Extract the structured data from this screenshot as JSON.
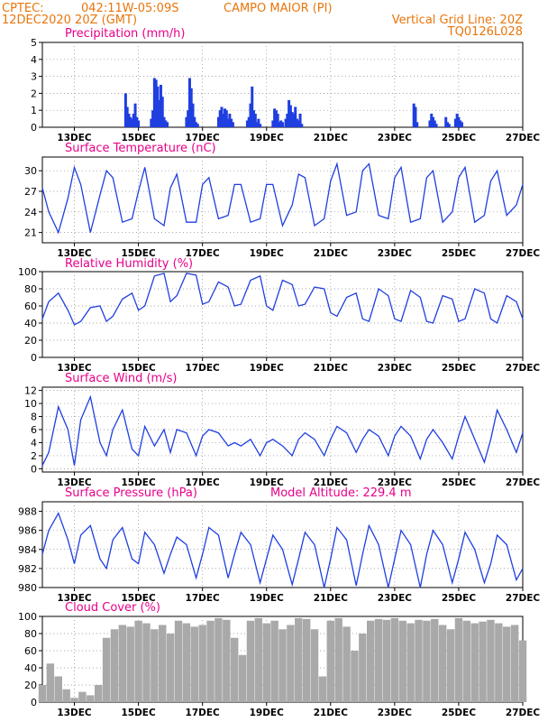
{
  "header": {
    "org": "CPTEC:",
    "coords": "042:11W-05:09S",
    "location": "CAMPO MAIOR (PI)",
    "run": "12DEC2020 20Z (GMT)",
    "grid_note": "Vertical Grid Line: 20Z",
    "model": "TQ0126L028"
  },
  "colors": {
    "header": "#e8760c",
    "title": "#e8008a",
    "line": "#1f3fe0",
    "bar": "#1f3fe0",
    "cloud": "#a9a9a9"
  },
  "x_ticks": [
    "13DEC",
    "15DEC",
    "17DEC",
    "19DEC",
    "21DEC",
    "23DEC",
    "25DEC",
    "27DEC"
  ],
  "chart_data": [
    {
      "type": "bar",
      "title": "Precipitation (mm/h)",
      "ylim": [
        0,
        5
      ],
      "yticks": [
        0,
        1,
        2,
        3,
        4,
        5
      ],
      "x_range_days": [
        12.0,
        27.0
      ],
      "x": [
        14.6,
        14.65,
        14.7,
        14.75,
        14.8,
        14.85,
        14.9,
        14.95,
        15.0,
        15.4,
        15.45,
        15.5,
        15.55,
        15.6,
        15.65,
        15.7,
        15.75,
        15.8,
        15.85,
        15.9,
        16.5,
        16.55,
        16.6,
        16.65,
        16.7,
        16.75,
        16.8,
        16.85,
        17.5,
        17.55,
        17.6,
        17.65,
        17.7,
        17.75,
        17.8,
        17.85,
        17.9,
        17.95,
        18.4,
        18.45,
        18.5,
        18.55,
        18.6,
        18.65,
        18.7,
        18.75,
        18.8,
        19.2,
        19.25,
        19.3,
        19.35,
        19.4,
        19.45,
        19.5,
        19.6,
        19.65,
        19.7,
        19.75,
        19.8,
        19.85,
        19.9,
        19.95,
        20.0,
        20.05,
        20.1,
        23.6,
        23.65,
        23.7,
        24.1,
        24.15,
        24.2,
        24.25,
        24.3,
        24.6,
        24.65,
        24.7,
        24.9,
        24.95,
        25.0,
        25.05,
        25.1
      ],
      "values": [
        2.0,
        1.2,
        0.8,
        0.6,
        0.5,
        0.8,
        1.4,
        0.6,
        0.4,
        0.5,
        1.0,
        2.9,
        2.8,
        2.4,
        1.6,
        2.5,
        1.8,
        0.6,
        0.4,
        0.3,
        0.6,
        1.0,
        2.9,
        2.3,
        1.4,
        0.6,
        0.3,
        0.2,
        0.6,
        1.0,
        1.2,
        0.8,
        1.1,
        1.0,
        0.5,
        0.8,
        0.5,
        0.3,
        0.4,
        0.6,
        1.4,
        2.4,
        1.0,
        0.8,
        0.3,
        0.5,
        0.2,
        0.4,
        1.1,
        1.0,
        0.8,
        0.3,
        0.4,
        0.3,
        0.5,
        0.8,
        1.6,
        1.3,
        0.9,
        0.8,
        1.2,
        0.5,
        0.4,
        0.8,
        0.2,
        1.4,
        1.2,
        0.3,
        0.4,
        0.8,
        0.6,
        0.4,
        0.2,
        0.6,
        0.3,
        0.2,
        0.5,
        0.8,
        0.6,
        0.4,
        0.3
      ]
    },
    {
      "type": "line",
      "title": "Surface Temperature (nC)",
      "ylim": [
        19.5,
        32
      ],
      "yticks": [
        21,
        24,
        27,
        30
      ],
      "x": [
        12.0,
        12.2,
        12.5,
        12.8,
        13.0,
        13.2,
        13.5,
        13.8,
        14.0,
        14.2,
        14.5,
        14.8,
        15.0,
        15.2,
        15.5,
        15.8,
        16.0,
        16.2,
        16.5,
        16.8,
        17.0,
        17.2,
        17.5,
        17.8,
        18.0,
        18.2,
        18.5,
        18.8,
        19.0,
        19.2,
        19.5,
        19.8,
        20.0,
        20.2,
        20.5,
        20.8,
        21.0,
        21.2,
        21.5,
        21.8,
        22.0,
        22.2,
        22.5,
        22.8,
        23.0,
        23.2,
        23.5,
        23.8,
        24.0,
        24.2,
        24.5,
        24.8,
        25.0,
        25.2,
        25.5,
        25.8,
        26.0,
        26.2,
        26.5,
        26.8,
        27.0
      ],
      "values": [
        27.5,
        24.0,
        21.0,
        26.0,
        30.5,
        28.0,
        21.0,
        26.5,
        30.0,
        29.0,
        22.5,
        23.0,
        27.0,
        30.5,
        23.0,
        22.0,
        27.5,
        29.5,
        22.5,
        22.5,
        28.0,
        29.0,
        23.0,
        23.5,
        28.0,
        28.0,
        22.5,
        23.0,
        28.0,
        28.0,
        22.0,
        25.0,
        29.5,
        29.0,
        22.0,
        23.0,
        28.5,
        31.0,
        23.5,
        24.0,
        30.0,
        31.0,
        23.5,
        23.0,
        29.0,
        30.5,
        22.5,
        23.0,
        29.0,
        30.0,
        22.5,
        24.0,
        29.0,
        30.5,
        22.5,
        23.5,
        28.5,
        30.0,
        23.5,
        25.0,
        28.0
      ]
    },
    {
      "type": "line",
      "title": "Relative Humidity (%)",
      "ylim": [
        0,
        100
      ],
      "yticks": [
        0,
        20,
        40,
        60,
        80,
        100
      ],
      "x": [
        12.0,
        12.2,
        12.5,
        12.8,
        13.0,
        13.2,
        13.5,
        13.8,
        14.0,
        14.2,
        14.5,
        14.8,
        15.0,
        15.2,
        15.5,
        15.8,
        16.0,
        16.2,
        16.5,
        16.8,
        17.0,
        17.2,
        17.5,
        17.8,
        18.0,
        18.2,
        18.5,
        18.8,
        19.0,
        19.2,
        19.5,
        19.8,
        20.0,
        20.2,
        20.5,
        20.8,
        21.0,
        21.2,
        21.5,
        21.8,
        22.0,
        22.2,
        22.5,
        22.8,
        23.0,
        23.2,
        23.5,
        23.8,
        24.0,
        24.2,
        24.5,
        24.8,
        25.0,
        25.2,
        25.5,
        25.8,
        26.0,
        26.2,
        26.5,
        26.8,
        27.0
      ],
      "values": [
        45,
        65,
        75,
        55,
        38,
        42,
        58,
        60,
        42,
        48,
        68,
        75,
        55,
        60,
        95,
        98,
        65,
        72,
        98,
        96,
        62,
        65,
        88,
        82,
        60,
        62,
        90,
        95,
        60,
        55,
        90,
        85,
        60,
        62,
        82,
        80,
        52,
        48,
        70,
        75,
        45,
        42,
        80,
        72,
        45,
        42,
        78,
        70,
        42,
        40,
        72,
        68,
        42,
        45,
        80,
        75,
        45,
        40,
        72,
        65,
        45
      ]
    },
    {
      "type": "line",
      "title": "Surface Wind (m/s)",
      "ylim": [
        -0.5,
        12.5
      ],
      "yticks": [
        0,
        2,
        4,
        6,
        8,
        10,
        12
      ],
      "x": [
        12.0,
        12.2,
        12.5,
        12.8,
        13.0,
        13.2,
        13.5,
        13.8,
        14.0,
        14.2,
        14.5,
        14.8,
        15.0,
        15.2,
        15.5,
        15.8,
        16.0,
        16.2,
        16.5,
        16.8,
        17.0,
        17.2,
        17.5,
        17.8,
        18.0,
        18.2,
        18.5,
        18.8,
        19.0,
        19.2,
        19.5,
        19.8,
        20.0,
        20.2,
        20.5,
        20.8,
        21.0,
        21.2,
        21.5,
        21.8,
        22.0,
        22.2,
        22.5,
        22.8,
        23.0,
        23.2,
        23.5,
        23.8,
        24.0,
        24.2,
        24.5,
        24.8,
        25.0,
        25.2,
        25.5,
        25.8,
        26.0,
        26.2,
        26.5,
        26.8,
        27.0
      ],
      "values": [
        0.5,
        2.5,
        9.5,
        6.0,
        0.5,
        7.5,
        11.0,
        4.0,
        2.0,
        6.0,
        9.0,
        3.0,
        2.0,
        6.5,
        3.5,
        6.0,
        2.5,
        6.0,
        5.5,
        2.0,
        5.0,
        6.0,
        5.5,
        3.5,
        4.0,
        3.5,
        4.5,
        2.0,
        4.0,
        4.5,
        3.5,
        2.0,
        4.5,
        5.5,
        4.5,
        2.0,
        4.5,
        6.5,
        5.5,
        2.5,
        4.5,
        6.0,
        5.0,
        2.0,
        5.0,
        6.5,
        5.0,
        1.5,
        4.5,
        6.0,
        4.0,
        1.5,
        5.0,
        8.0,
        4.5,
        1.0,
        4.5,
        9.0,
        6.0,
        2.5,
        5.5
      ]
    },
    {
      "type": "line",
      "title": "Surface Pressure (hPa)",
      "annotation": "Model Altitude: 229.4  m",
      "ylim": [
        980,
        989
      ],
      "yticks": [
        980,
        982,
        984,
        986,
        988
      ],
      "x": [
        12.0,
        12.2,
        12.5,
        12.8,
        13.0,
        13.2,
        13.5,
        13.8,
        14.0,
        14.2,
        14.5,
        14.8,
        15.0,
        15.2,
        15.5,
        15.8,
        16.0,
        16.2,
        16.5,
        16.8,
        17.0,
        17.2,
        17.5,
        17.8,
        18.0,
        18.2,
        18.5,
        18.8,
        19.0,
        19.2,
        19.5,
        19.8,
        20.0,
        20.2,
        20.5,
        20.8,
        21.0,
        21.2,
        21.5,
        21.8,
        22.0,
        22.2,
        22.5,
        22.8,
        23.0,
        23.2,
        23.5,
        23.8,
        24.0,
        24.2,
        24.5,
        24.8,
        25.0,
        25.2,
        25.5,
        25.8,
        26.0,
        26.2,
        26.5,
        26.8,
        27.0
      ],
      "values": [
        983.5,
        986.0,
        987.8,
        985.0,
        982.5,
        985.5,
        986.5,
        983.0,
        982.0,
        985.0,
        986.3,
        983.0,
        982.5,
        985.8,
        984.5,
        981.5,
        983.5,
        985.3,
        984.5,
        981.0,
        983.5,
        986.3,
        985.5,
        981.0,
        983.5,
        985.8,
        984.5,
        980.5,
        983.0,
        985.5,
        984.0,
        980.3,
        983.0,
        985.8,
        984.5,
        980.0,
        983.0,
        986.3,
        985.0,
        980.2,
        983.5,
        986.5,
        984.5,
        980.0,
        983.0,
        986.0,
        984.5,
        980.0,
        983.5,
        986.0,
        984.5,
        980.5,
        983.0,
        985.8,
        984.0,
        980.5,
        982.5,
        985.5,
        984.5,
        980.8,
        982.0
      ]
    },
    {
      "type": "bar",
      "title": "Cloud Cover (%)",
      "ylim": [
        0,
        100
      ],
      "yticks": [
        0,
        20,
        40,
        60,
        80,
        100
      ],
      "x": [
        12.0,
        12.25,
        12.5,
        12.75,
        13.0,
        13.25,
        13.5,
        13.75,
        14.0,
        14.25,
        14.5,
        14.75,
        15.0,
        15.25,
        15.5,
        15.75,
        16.0,
        16.25,
        16.5,
        16.75,
        17.0,
        17.25,
        17.5,
        17.75,
        18.0,
        18.25,
        18.5,
        18.75,
        19.0,
        19.25,
        19.5,
        19.75,
        20.0,
        20.25,
        20.5,
        20.75,
        21.0,
        21.25,
        21.5,
        21.75,
        22.0,
        22.25,
        22.5,
        22.75,
        23.0,
        23.25,
        23.5,
        23.75,
        24.0,
        24.25,
        24.5,
        24.75,
        25.0,
        25.25,
        25.5,
        25.75,
        26.0,
        26.25,
        26.5,
        26.75,
        27.0
      ],
      "values": [
        20,
        45,
        30,
        15,
        5,
        12,
        8,
        20,
        75,
        85,
        90,
        88,
        95,
        92,
        85,
        90,
        80,
        95,
        92,
        88,
        90,
        95,
        98,
        96,
        75,
        55,
        95,
        98,
        92,
        95,
        85,
        90,
        98,
        97,
        85,
        30,
        95,
        98,
        88,
        60,
        80,
        95,
        97,
        96,
        98,
        95,
        92,
        96,
        95,
        97,
        90,
        85,
        98,
        95,
        92,
        94,
        96,
        92,
        88,
        90,
        72
      ]
    }
  ]
}
